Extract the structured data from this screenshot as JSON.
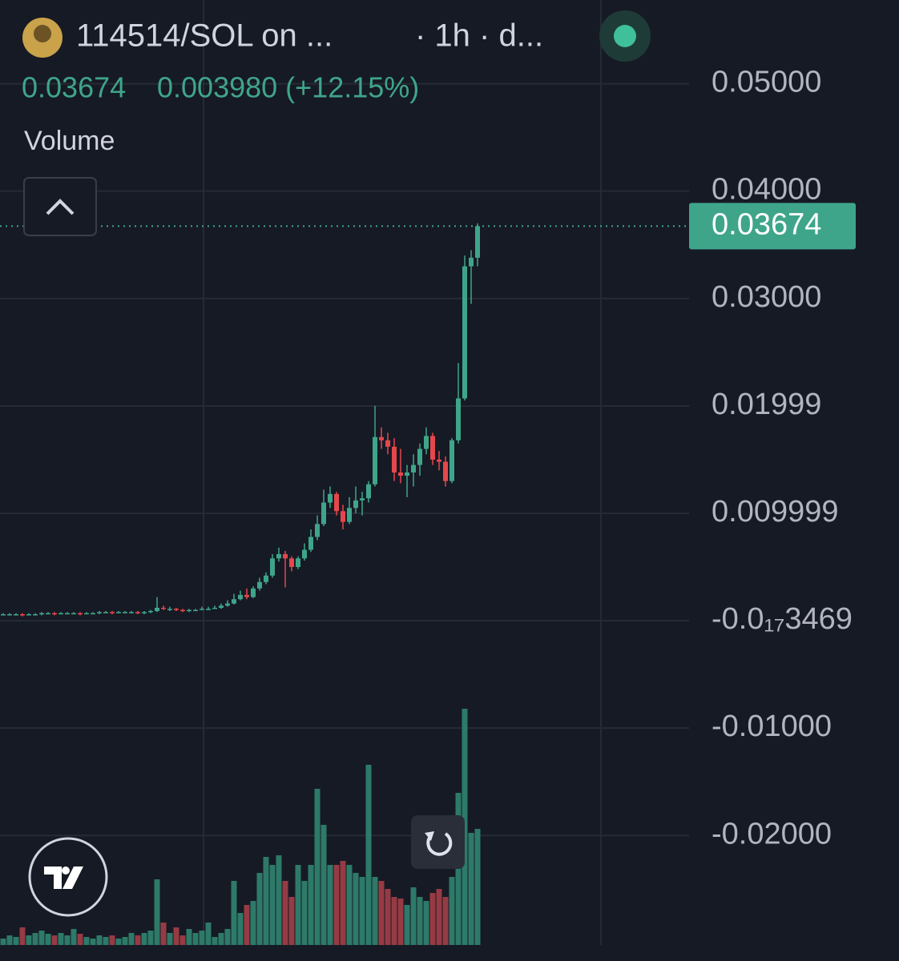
{
  "chart_data": {
    "type": "candlestick",
    "title": "114514/SOL on ...",
    "interval": "· 1h · d...",
    "last_price": 0.03674,
    "change": "0.003980 (+12.15%)",
    "up_color": "#3fa58a",
    "down_color": "#e5474b",
    "ylim": [
      -0.0302,
      0.0578
    ],
    "yticks": [
      {
        "value": 0.05,
        "label": "0.05000"
      },
      {
        "value": 0.04,
        "label": "0.04000"
      },
      {
        "value": 0.03,
        "label": "0.03000"
      },
      {
        "value": 0.01999,
        "label": "0.01999"
      },
      {
        "value": 0.009999,
        "label": "0.009999"
      },
      {
        "value": -3.469e-18,
        "label": "-0.0₁₇3469"
      },
      {
        "value": -0.01,
        "label": "-0.01000"
      },
      {
        "value": -0.02,
        "label": "-0.02000"
      }
    ],
    "grid": true,
    "open": [
      0.0006,
      0.0006,
      0.0006,
      0.0006,
      0.0005,
      0.0006,
      0.0006,
      0.0007,
      0.0007,
      0.0006,
      0.0007,
      0.0007,
      0.0007,
      0.0006,
      0.0007,
      0.0007,
      0.0008,
      0.0008,
      0.0007,
      0.0008,
      0.0008,
      0.0008,
      0.0007,
      0.0008,
      0.0009,
      0.0012,
      0.0011,
      0.0011,
      0.001,
      0.0009,
      0.001,
      0.001,
      0.0011,
      0.0011,
      0.0012,
      0.0014,
      0.0016,
      0.002,
      0.0024,
      0.0022,
      0.003,
      0.0036,
      0.0042,
      0.0058,
      0.0062,
      0.0058,
      0.005,
      0.0058,
      0.0066,
      0.0078,
      0.009,
      0.011,
      0.0118,
      0.0102,
      0.0092,
      0.0105,
      0.0112,
      0.0114,
      0.0127,
      0.0171,
      0.0168,
      0.0162,
      0.0138,
      0.0135,
      0.0138,
      0.0145,
      0.016,
      0.0172,
      0.015,
      0.0148,
      0.013,
      0.0168,
      0.0207,
      0.033,
      0.0338
    ],
    "high": [
      0.0007,
      0.0007,
      0.0007,
      0.0007,
      0.0007,
      0.0007,
      0.0008,
      0.0008,
      0.0008,
      0.0008,
      0.0008,
      0.0008,
      0.0008,
      0.0008,
      0.0008,
      0.0009,
      0.0009,
      0.0009,
      0.0009,
      0.0009,
      0.0009,
      0.0009,
      0.0009,
      0.001,
      0.0022,
      0.0014,
      0.0013,
      0.0012,
      0.0011,
      0.0011,
      0.0011,
      0.0013,
      0.0013,
      0.0014,
      0.0016,
      0.0019,
      0.0025,
      0.0028,
      0.003,
      0.0032,
      0.004,
      0.0045,
      0.0062,
      0.0068,
      0.0065,
      0.006,
      0.006,
      0.0072,
      0.0085,
      0.0098,
      0.0122,
      0.0125,
      0.012,
      0.0108,
      0.0115,
      0.0125,
      0.012,
      0.013,
      0.02,
      0.018,
      0.0175,
      0.017,
      0.016,
      0.0145,
      0.0155,
      0.0165,
      0.018,
      0.0175,
      0.0158,
      0.0153,
      0.017,
      0.024,
      0.034,
      0.0345,
      0.037
    ],
    "low": [
      0.0005,
      0.0005,
      0.0005,
      0.0004,
      0.0005,
      0.0005,
      0.0005,
      0.0006,
      0.0005,
      0.0006,
      0.0006,
      0.0006,
      0.0005,
      0.0006,
      0.0006,
      0.0006,
      0.0007,
      0.0006,
      0.0007,
      0.0007,
      0.0007,
      0.0006,
      0.0006,
      0.0007,
      0.0008,
      0.001,
      0.0009,
      0.0009,
      0.0008,
      0.0008,
      0.0009,
      0.001,
      0.001,
      0.0011,
      0.0011,
      0.0013,
      0.0015,
      0.0019,
      0.002,
      0.0021,
      0.0028,
      0.0034,
      0.004,
      0.0055,
      0.0031,
      0.0046,
      0.0048,
      0.0056,
      0.0064,
      0.0075,
      0.0088,
      0.0105,
      0.0098,
      0.0085,
      0.009,
      0.01,
      0.0098,
      0.011,
      0.0125,
      0.016,
      0.0155,
      0.013,
      0.0128,
      0.0115,
      0.0125,
      0.0135,
      0.0155,
      0.0145,
      0.014,
      0.0125,
      0.0128,
      0.0165,
      0.0205,
      0.0295,
      0.033
    ],
    "close": [
      0.0006,
      0.0006,
      0.0006,
      0.0005,
      0.0006,
      0.0006,
      0.0007,
      0.0007,
      0.0006,
      0.0007,
      0.0007,
      0.0007,
      0.0006,
      0.0007,
      0.0007,
      0.0008,
      0.0008,
      0.0007,
      0.0008,
      0.0008,
      0.0008,
      0.0007,
      0.0008,
      0.0009,
      0.0012,
      0.0011,
      0.0011,
      0.001,
      0.0009,
      0.001,
      0.001,
      0.0011,
      0.0011,
      0.0012,
      0.0014,
      0.0016,
      0.002,
      0.0024,
      0.0022,
      0.003,
      0.0036,
      0.0042,
      0.0058,
      0.0062,
      0.0058,
      0.005,
      0.0058,
      0.0066,
      0.0078,
      0.009,
      0.011,
      0.0118,
      0.0102,
      0.0092,
      0.0105,
      0.0112,
      0.0114,
      0.0127,
      0.0171,
      0.0168,
      0.0162,
      0.0138,
      0.0135,
      0.0138,
      0.0145,
      0.016,
      0.0172,
      0.015,
      0.0148,
      0.013,
      0.0168,
      0.0207,
      0.033,
      0.0338,
      0.03674
    ],
    "volume": {
      "name": "Volume",
      "up_color": "#2d7a69",
      "down_color": "#963b44",
      "vlim": [
        0,
        320
      ],
      "values": [
        8,
        12,
        10,
        22,
        12,
        15,
        18,
        14,
        12,
        15,
        12,
        20,
        14,
        10,
        8,
        12,
        10,
        12,
        8,
        10,
        15,
        12,
        15,
        18,
        82,
        28,
        15,
        22,
        12,
        20,
        15,
        18,
        28,
        10,
        15,
        20,
        80,
        40,
        50,
        55,
        90,
        110,
        100,
        112,
        80,
        60,
        100,
        80,
        100,
        195,
        150,
        100,
        100,
        105,
        100,
        90,
        85,
        225,
        85,
        80,
        70,
        60,
        58,
        50,
        72,
        60,
        55,
        65,
        70,
        60,
        85,
        190,
        295,
        140,
        145
      ]
    }
  }
}
